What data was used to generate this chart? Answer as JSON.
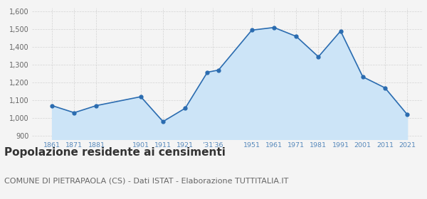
{
  "years": [
    1861,
    1871,
    1881,
    1901,
    1911,
    1921,
    1931,
    1936,
    1951,
    1961,
    1971,
    1981,
    1991,
    2001,
    2011,
    2021
  ],
  "population": [
    1070,
    1030,
    1070,
    1120,
    980,
    1055,
    1258,
    1270,
    1495,
    1510,
    1460,
    1345,
    1490,
    1232,
    1170,
    1020
  ],
  "line_color": "#2b6cb0",
  "fill_color": "#cce4f7",
  "marker": "o",
  "marker_size": 3.5,
  "ylim": [
    880,
    1620
  ],
  "yticks": [
    900,
    1000,
    1100,
    1200,
    1300,
    1400,
    1500,
    1600
  ],
  "ytick_labels": [
    "900",
    "1,000",
    "1,100",
    "1,200",
    "1,300",
    "1,400",
    "1,500",
    "1,600"
  ],
  "x_tick_positions": [
    1861,
    1871,
    1881,
    1901,
    1911,
    1921,
    1933.5,
    1951,
    1961,
    1971,
    1981,
    1991,
    2001,
    2011,
    2021
  ],
  "x_tick_labels": [
    "1861",
    "1871",
    "1881",
    "1901",
    "1911",
    "1921",
    "’31′36",
    "1951",
    "1961",
    "1971",
    "1981",
    "1991",
    "2001",
    "2011",
    "2021"
  ],
  "xlim": [
    1852,
    2028
  ],
  "title": "Popolazione residente ai censimenti",
  "subtitle": "COMUNE DI PIETRAPAOLA (CS) - Dati ISTAT - Elaborazione TUTTITALIA.IT",
  "background_color": "#f4f4f4",
  "grid_color": "#cccccc",
  "title_fontsize": 11,
  "subtitle_fontsize": 8,
  "tick_color": "#5588bb"
}
